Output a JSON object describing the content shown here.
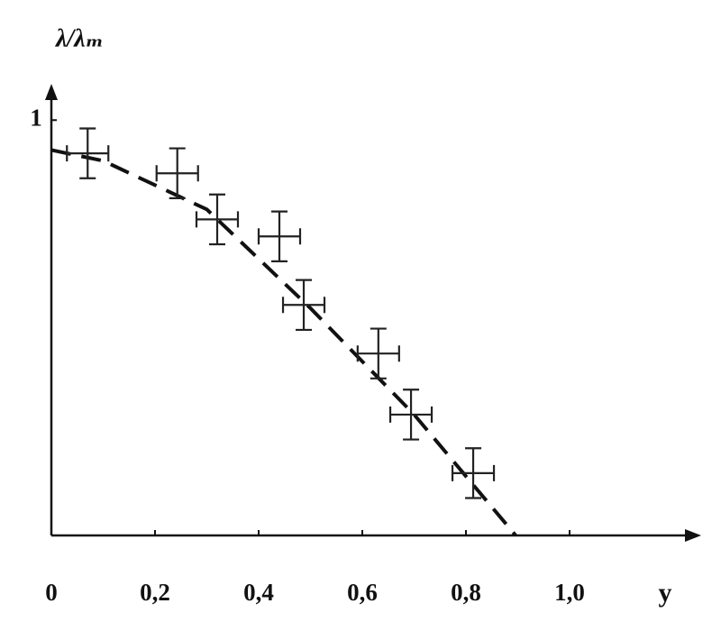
{
  "chart_data": {
    "type": "scatter",
    "ylabel": "λ/λₘ",
    "xlabel": "y",
    "xlim": [
      0,
      1.24
    ],
    "ylim": [
      0,
      1.07
    ],
    "xticks": [
      0,
      {
        "value": 0.2,
        "label": "0,2"
      },
      {
        "value": 0.4,
        "label": "0,4"
      },
      {
        "value": 0.6,
        "label": "0,6"
      },
      {
        "value": 0.8,
        "label": "0,8"
      },
      {
        "value": 1.0,
        "label": "1,0"
      }
    ],
    "yticks": [
      1
    ],
    "points": {
      "color": "#222",
      "x": [
        0.07,
        0.243,
        0.32,
        0.44,
        0.487,
        0.631,
        0.694,
        0.814
      ],
      "y": [
        0.92,
        0.872,
        0.761,
        0.72,
        0.555,
        0.438,
        0.291,
        0.15
      ],
      "xerr": [
        0.04,
        0.04,
        0.04,
        0.04,
        0.04,
        0.04,
        0.04,
        0.04
      ],
      "yerr": [
        0.06,
        0.06,
        0.06,
        0.06,
        0.06,
        0.06,
        0.06,
        0.06
      ]
    },
    "fit": {
      "color": "#111",
      "dashed": true,
      "x": [
        0,
        0.1,
        0.3,
        0.5,
        0.7,
        0.896
      ],
      "y": [
        0.928,
        0.902,
        0.785,
        0.547,
        0.291,
        0
      ]
    }
  }
}
